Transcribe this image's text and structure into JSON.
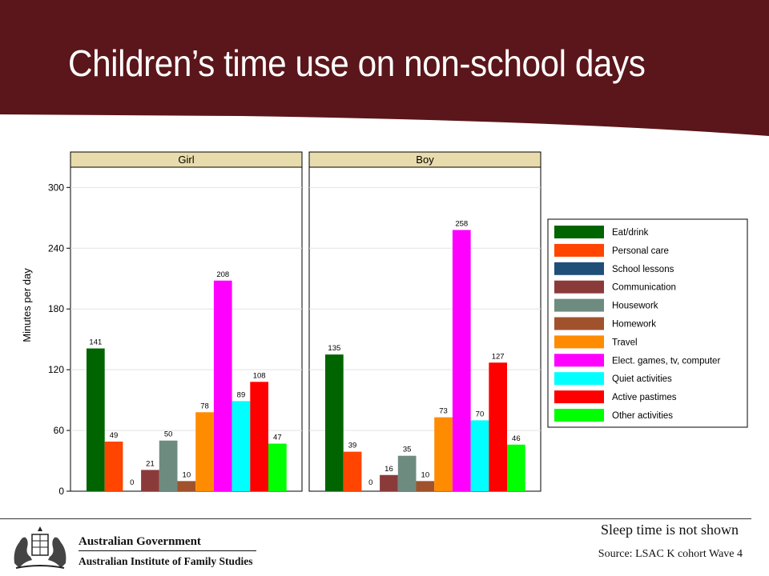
{
  "slide": {
    "title": "Children’s time use on non-school days",
    "sleep_note": "Sleep time is not shown",
    "source_note": "Source: LSAC K cohort Wave 4"
  },
  "logo": {
    "government": "Australian Government",
    "institute": "Australian Institute of Family Studies"
  },
  "chart_data": {
    "type": "bar",
    "ylabel": "Minutes per day",
    "ylim": [
      0,
      320
    ],
    "yticks": [
      0,
      60,
      120,
      180,
      240,
      300
    ],
    "grid": true,
    "legend_position": "right",
    "categories": [
      "Eat/drink",
      "Personal care",
      "School lessons",
      "Communication",
      "Housework",
      "Homework",
      "Travel",
      "Elect. games, tv, computer",
      "Quiet activities",
      "Active pastimes",
      "Other activities"
    ],
    "colors": [
      "#006400",
      "#ff4500",
      "#1f4e79",
      "#8b3a3a",
      "#6e8b80",
      "#a0522d",
      "#ff8c00",
      "#ff00ff",
      "#00ffff",
      "#ff0000",
      "#00ff00"
    ],
    "panels": [
      {
        "name": "Girl",
        "values": [
          141,
          49,
          0,
          21,
          50,
          10,
          78,
          208,
          89,
          108,
          47
        ]
      },
      {
        "name": "Boy",
        "values": [
          135,
          39,
          0,
          16,
          35,
          10,
          73,
          258,
          70,
          127,
          46
        ]
      }
    ]
  }
}
